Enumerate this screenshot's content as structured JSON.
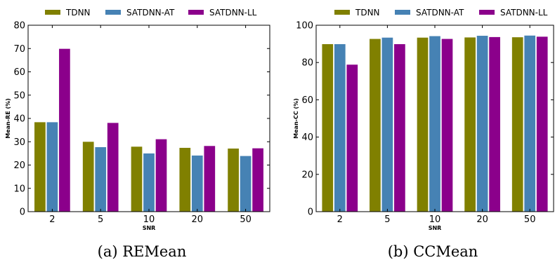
{
  "chart_data": [
    {
      "type": "bar",
      "caption": "(a) REMean",
      "xlabel": "SNR",
      "ylabel": "Mean-RE (%)",
      "categories": [
        "2",
        "5",
        "10",
        "20",
        "50"
      ],
      "ylim": [
        0,
        80
      ],
      "yticks": [
        0,
        10,
        20,
        30,
        40,
        50,
        60,
        70,
        80
      ],
      "legend_position": "top",
      "series": [
        {
          "name": "TDNN",
          "color": "#808000",
          "values": [
            38.5,
            30.1,
            28.0,
            27.5,
            27.2
          ]
        },
        {
          "name": "SATDNN-AT",
          "color": "#4682B4",
          "values": [
            38.5,
            27.8,
            25.1,
            24.2,
            24.0
          ]
        },
        {
          "name": "SATDNN-LL",
          "color": "#8B008B",
          "values": [
            70.0,
            38.2,
            31.2,
            28.3,
            27.3
          ]
        }
      ]
    },
    {
      "type": "bar",
      "caption": "(b) CCMean",
      "xlabel": "SNR",
      "ylabel": "Mean-CC (%)",
      "categories": [
        "2",
        "5",
        "10",
        "20",
        "50"
      ],
      "ylim": [
        0,
        100
      ],
      "yticks": [
        0,
        20,
        40,
        60,
        80,
        100
      ],
      "legend_position": "top",
      "series": [
        {
          "name": "TDNN",
          "color": "#808000",
          "values": [
            90.0,
            92.8,
            93.5,
            93.6,
            93.7
          ]
        },
        {
          "name": "SATDNN-AT",
          "color": "#4682B4",
          "values": [
            90.0,
            93.5,
            94.3,
            94.5,
            94.6
          ]
        },
        {
          "name": "SATDNN-LL",
          "color": "#8B008B",
          "values": [
            79.0,
            90.0,
            92.8,
            93.8,
            94.0
          ]
        }
      ]
    }
  ]
}
